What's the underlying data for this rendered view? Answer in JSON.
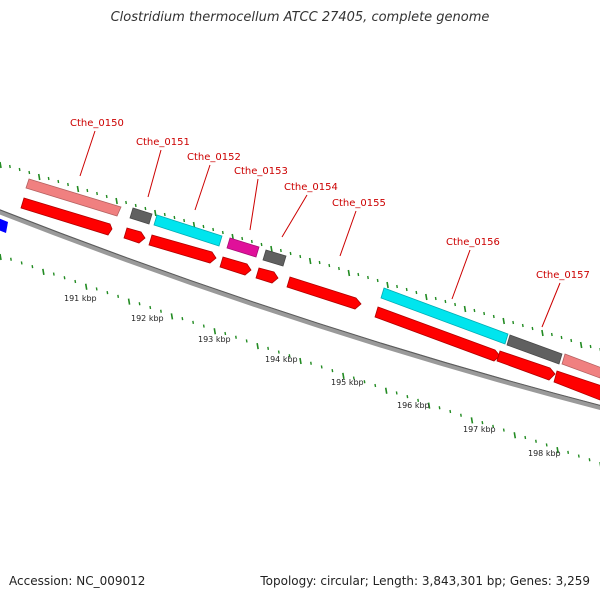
{
  "title": "Clostridium thermocellum ATCC 27405, complete genome",
  "footer": {
    "accession": "Accession: NC_009012",
    "topology": "Topology: circular; Length: 3,843,301 bp; Genes: 3,259"
  },
  "kbp_labels": [
    "191 kbp",
    "192 kbp",
    "193 kbp",
    "194 kbp",
    "195 kbp",
    "196 kbp",
    "197 kbp",
    "198 kbp"
  ],
  "genes": [
    {
      "name": "Cthe_0150",
      "color": "#f08080"
    },
    {
      "name": "Cthe_0151",
      "color": "#606060"
    },
    {
      "name": "Cthe_0152",
      "color": "#00e5ee"
    },
    {
      "name": "Cthe_0153",
      "color": "#e0109a"
    },
    {
      "name": "Cthe_0154",
      "color": "#606060"
    },
    {
      "name": "Cthe_0155",
      "color": "#ff0000"
    },
    {
      "name": "Cthe_0156",
      "color": "#00e5ee"
    },
    {
      "name": "Cthe_0157",
      "color": "#606060"
    }
  ],
  "colors": {
    "cds": "#ff0000",
    "backbone": "#808080",
    "tick": "#228b22",
    "label": "#cc0000",
    "left_feature": "#0000ff"
  }
}
